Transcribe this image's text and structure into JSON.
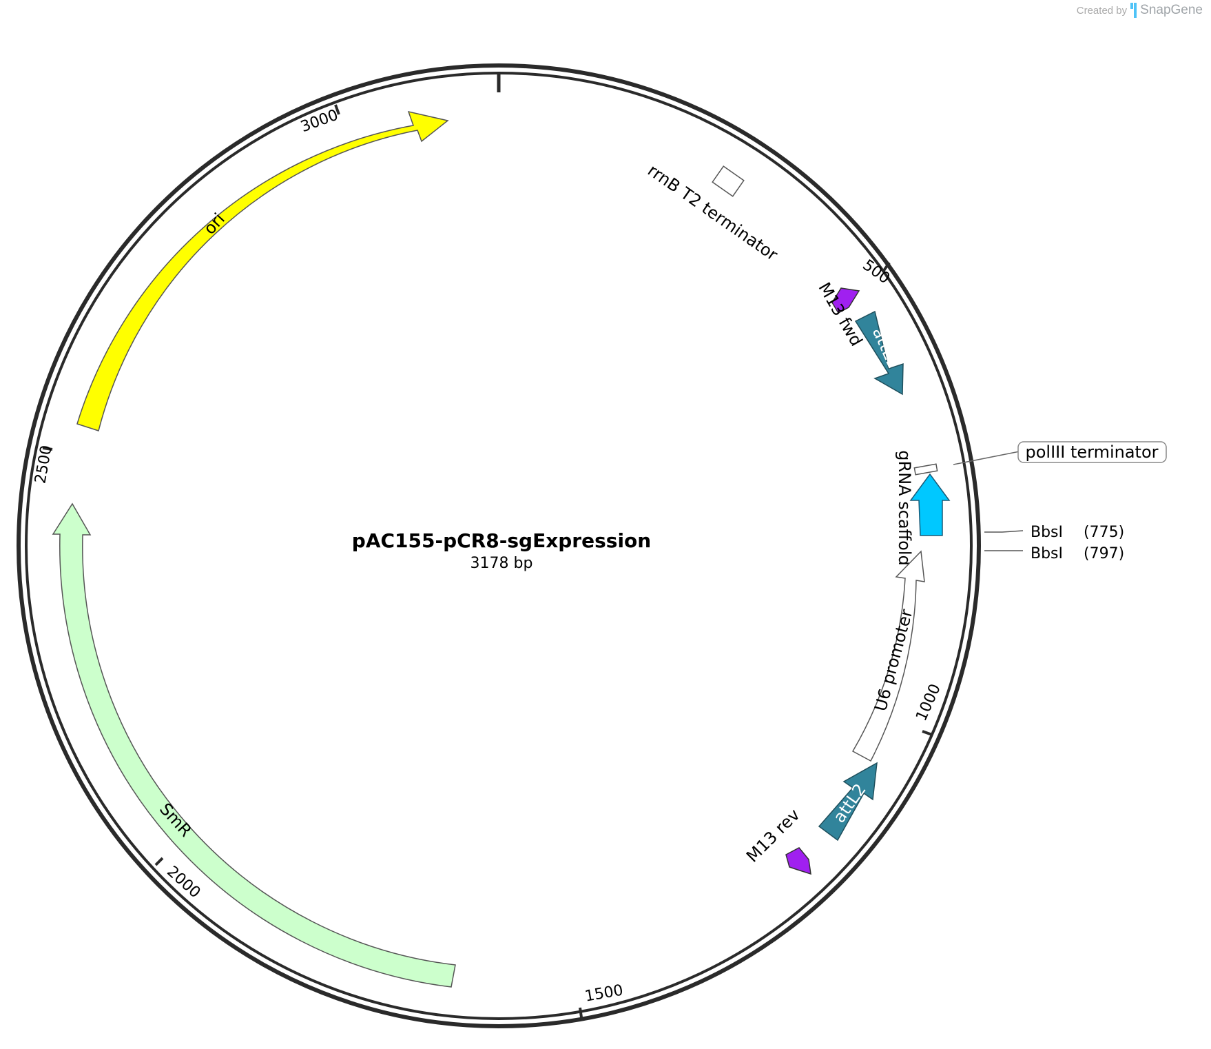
{
  "branding": {
    "created_by": "Created by",
    "app_name": "SnapGene",
    "brand_color": "#4fc3f7"
  },
  "plasmid": {
    "name": "pAC155-pCR8-sgExpression",
    "length_label": "3178 bp",
    "length_bp": 3178
  },
  "tick_labels": [
    "500",
    "1000",
    "1500",
    "2000",
    "2500",
    "3000"
  ],
  "features": [
    {
      "id": "rrnB",
      "label": "rrnB T2 terminator",
      "color": "#ffffff",
      "type": "terminator"
    },
    {
      "id": "m13fwd",
      "label": "M13 fwd",
      "color": "#a020f0",
      "type": "primer_bind"
    },
    {
      "id": "attL1",
      "label": "attL1",
      "color": "#31849b",
      "type": "arrow"
    },
    {
      "id": "polIII",
      "label": "polIII terminator",
      "color": "#ffffff",
      "type": "terminator"
    },
    {
      "id": "gRNA",
      "label": "gRNA scaffold",
      "color": "#00c8ff",
      "type": "arrow"
    },
    {
      "id": "U6",
      "label": "U6 promoter",
      "color": "#ffffff",
      "type": "arrow"
    },
    {
      "id": "attL2",
      "label": "attL2",
      "color": "#31849b",
      "type": "arrow"
    },
    {
      "id": "m13rev",
      "label": "M13 rev",
      "color": "#a020f0",
      "type": "primer_bind"
    },
    {
      "id": "SmR",
      "label": "SmR",
      "color": "#ccffcc",
      "type": "arrow"
    },
    {
      "id": "ori",
      "label": "ori",
      "color": "#ffff00",
      "type": "arrow"
    }
  ],
  "enzyme_sites": [
    {
      "name": "BbsI",
      "position": "(775)"
    },
    {
      "name": "BbsI",
      "position": "(797)"
    }
  ]
}
